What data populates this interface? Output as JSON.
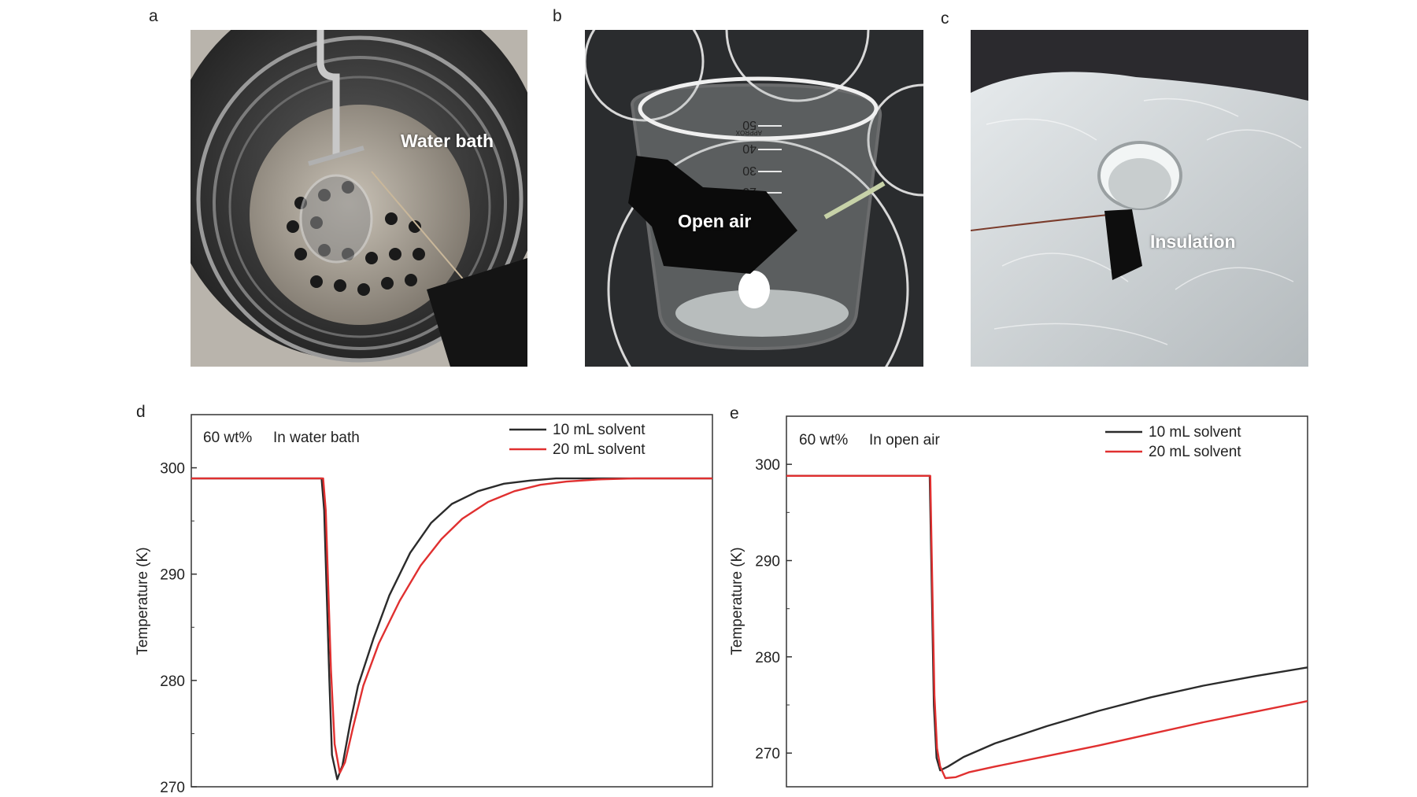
{
  "panels": {
    "a": {
      "letter": "a",
      "label": "Water bath"
    },
    "b": {
      "letter": "b",
      "label": "Open air"
    },
    "c": {
      "letter": "c",
      "label": "Insulation"
    },
    "d": {
      "letter": "d"
    },
    "e": {
      "letter": "e"
    }
  },
  "beaker_marks": [
    "50",
    "40",
    "30",
    "20"
  ],
  "beaker_brand": "APPROX",
  "colors": {
    "series1": "#2b2b2b",
    "series2": "#e03030"
  },
  "chart_data": [
    {
      "type": "line",
      "annotation_left": "60 wt%",
      "annotation_right": "In water bath",
      "xlabel": "",
      "ylabel": "Temperature (K)",
      "ylim": [
        270,
        305
      ],
      "xlim": [
        0,
        100
      ],
      "yticks": [
        270,
        280,
        290,
        300
      ],
      "legend_position": "top-right",
      "series": [
        {
          "name": "10 mL solvent",
          "color": "#2b2b2b",
          "x": [
            0,
            25,
            25.5,
            26.5,
            27,
            28,
            29,
            30.5,
            32,
            35,
            38,
            42,
            46,
            50,
            55,
            60,
            65,
            70,
            80,
            90,
            100
          ],
          "values": [
            299,
            299,
            296,
            280,
            273,
            270.7,
            272,
            276,
            279.5,
            284,
            288,
            292,
            294.8,
            296.6,
            297.8,
            298.5,
            298.8,
            299,
            299,
            299,
            299
          ]
        },
        {
          "name": "20 mL solvent",
          "color": "#e03030",
          "x": [
            0,
            25.3,
            25.8,
            26.8,
            27.5,
            28.5,
            29.5,
            31,
            33,
            36,
            40,
            44,
            48,
            52,
            57,
            62,
            67,
            72,
            78,
            85,
            92,
            100
          ],
          "values": [
            299,
            299,
            296,
            281,
            274,
            271.3,
            272.3,
            275.5,
            279.5,
            283.5,
            287.5,
            290.8,
            293.3,
            295.2,
            296.8,
            297.8,
            298.4,
            298.7,
            298.9,
            299,
            299,
            299
          ]
        }
      ]
    },
    {
      "type": "line",
      "annotation_left": "60 wt%",
      "annotation_right": "In open air",
      "xlabel": "",
      "ylabel": "Temperature (K)",
      "ylim": [
        266.5,
        305
      ],
      "xlim": [
        0,
        100
      ],
      "yticks": [
        270,
        280,
        290,
        300
      ],
      "legend_position": "top-right",
      "series": [
        {
          "name": "10 mL solvent",
          "color": "#2b2b2b",
          "x": [
            0,
            27.5,
            27.8,
            28.3,
            28.8,
            29.5,
            31,
            34,
            40,
            50,
            60,
            70,
            80,
            90,
            100
          ],
          "values": [
            298.8,
            298.8,
            290,
            275,
            269.5,
            268.2,
            268.6,
            269.6,
            271,
            272.8,
            274.4,
            275.8,
            277,
            278,
            278.9
          ]
        },
        {
          "name": "20 mL solvent",
          "color": "#e03030",
          "x": [
            0,
            27.6,
            27.9,
            28.4,
            28.9,
            29.5,
            30.5,
            32.5,
            35,
            40,
            50,
            60,
            70,
            80,
            90,
            100
          ],
          "values": [
            298.8,
            298.8,
            290,
            276,
            270.5,
            268.6,
            267.4,
            267.5,
            268,
            268.6,
            269.7,
            270.8,
            272,
            273.2,
            274.3,
            275.4
          ]
        }
      ]
    }
  ]
}
